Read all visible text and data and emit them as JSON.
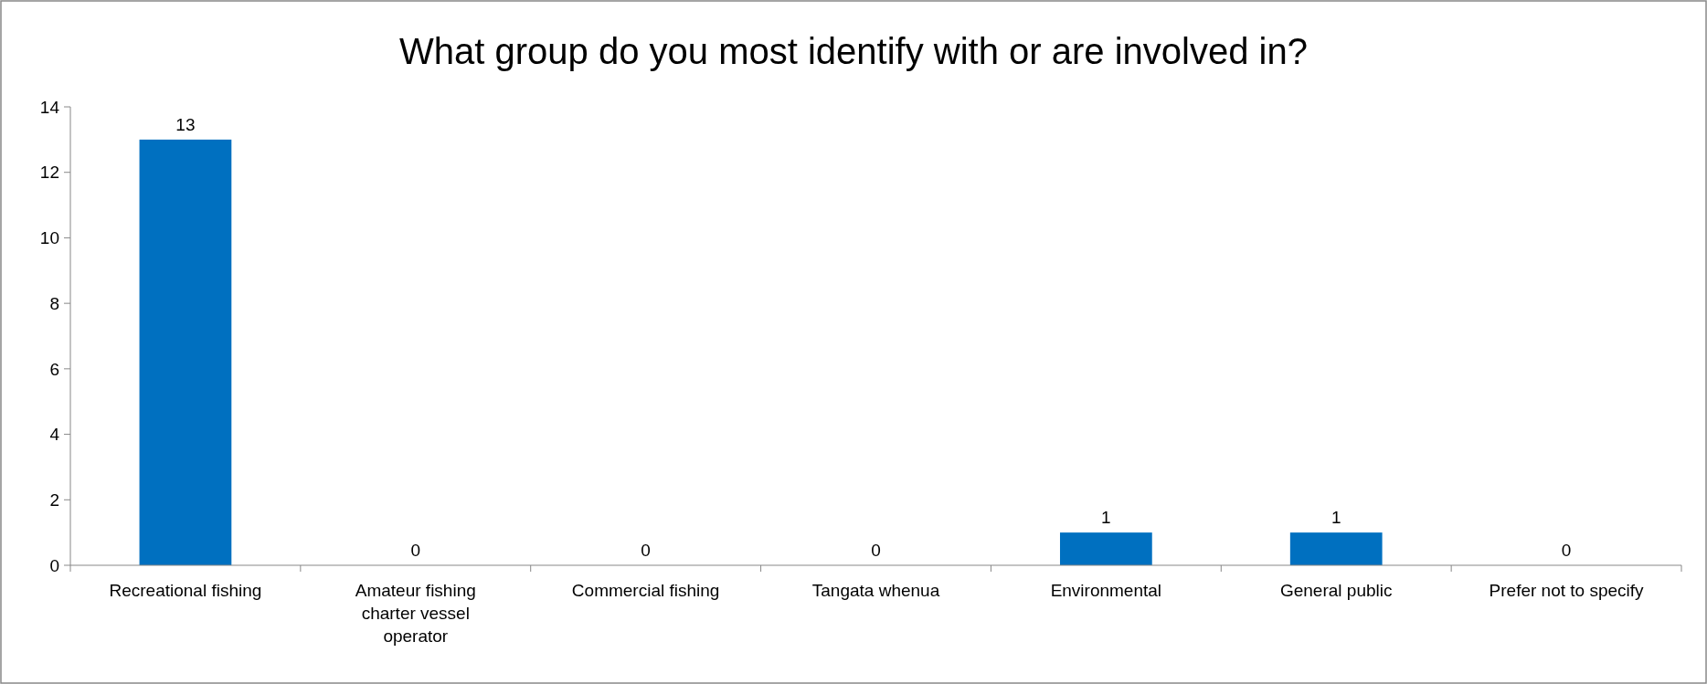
{
  "chart_data": {
    "type": "bar",
    "title": "What group do you most identify with or are involved in?",
    "categories": [
      "Recreational fishing",
      "Amateur fishing charter vessel operator",
      "Commercial fishing",
      "Tangata whenua",
      "Environmental",
      "General public",
      "Prefer not to specify"
    ],
    "values": [
      13,
      0,
      0,
      0,
      1,
      1,
      0
    ],
    "color": "#0070c0",
    "ylim": [
      0,
      14
    ],
    "yticks": [
      0,
      2,
      4,
      6,
      8,
      10,
      12,
      14
    ],
    "grid": false,
    "data_labels": true
  }
}
